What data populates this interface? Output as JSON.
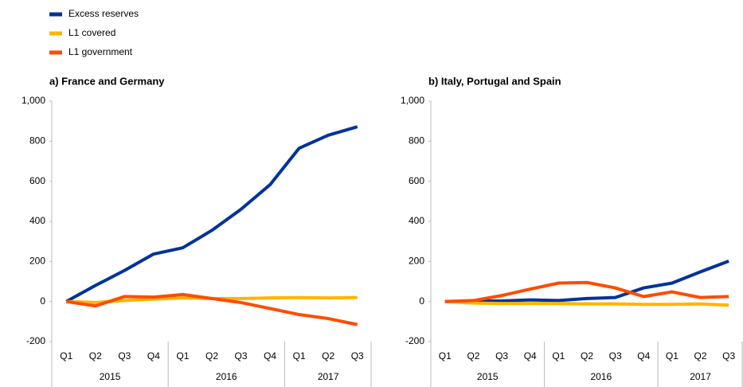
{
  "chart_data": [
    {
      "type": "line",
      "title": "a) France and Germany",
      "categories": [
        "Q1",
        "Q2",
        "Q3",
        "Q4",
        "Q1",
        "Q2",
        "Q3",
        "Q4",
        "Q1",
        "Q2",
        "Q3"
      ],
      "years": [
        "2015",
        "2016",
        "2017"
      ],
      "ylim": [
        -200,
        1000
      ],
      "yticks": [
        -200,
        0,
        200,
        400,
        600,
        800,
        {
          "value": 1000,
          "label": "1,000"
        }
      ],
      "series": [
        {
          "name": "Excess reserves",
          "color": "#003399",
          "values": [
            0,
            80,
            155,
            237,
            268,
            355,
            460,
            583,
            765,
            830,
            872
          ]
        },
        {
          "name": "L1 covered",
          "color": "#ffb400",
          "values": [
            0,
            -5,
            5,
            12,
            18,
            15,
            15,
            18,
            20,
            18,
            20
          ]
        },
        {
          "name": "L1 government",
          "color": "#ff4b00",
          "values": [
            0,
            -22,
            25,
            22,
            35,
            15,
            -5,
            -35,
            -65,
            -85,
            -115
          ]
        }
      ]
    },
    {
      "type": "line",
      "title": "b) Italy, Portugal and Spain",
      "categories": [
        "Q1",
        "Q2",
        "Q3",
        "Q4",
        "Q1",
        "Q2",
        "Q3",
        "Q4",
        "Q1",
        "Q2",
        "Q3"
      ],
      "years": [
        "2015",
        "2016",
        "2017"
      ],
      "ylim": [
        -200,
        1000
      ],
      "yticks": [
        -200,
        0,
        200,
        400,
        600,
        800,
        {
          "value": 1000,
          "label": "1,000"
        }
      ],
      "series": [
        {
          "color": "#003399",
          "values": [
            0,
            2,
            3,
            8,
            5,
            15,
            20,
            68,
            92,
            148,
            202
          ]
        },
        {
          "color": "#ffb400",
          "values": [
            0,
            -8,
            -10,
            -10,
            -10,
            -12,
            -12,
            -14,
            -14,
            -12,
            -18
          ]
        },
        {
          "color": "#ff4b00",
          "values": [
            0,
            5,
            30,
            62,
            92,
            95,
            68,
            25,
            48,
            20,
            25
          ]
        }
      ]
    }
  ]
}
